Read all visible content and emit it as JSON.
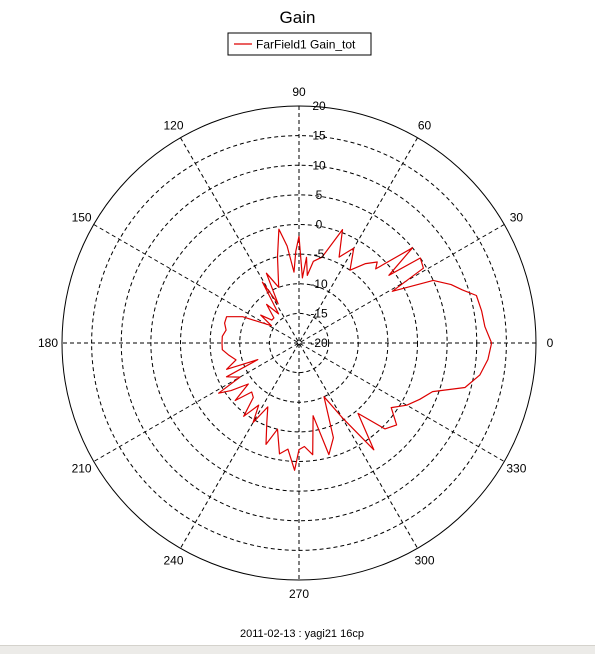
{
  "chart_data": {
    "type": "polar-line",
    "title": "Gain",
    "legend": {
      "position": "top-center",
      "entries": [
        "FarField1 Gain_tot"
      ]
    },
    "radial_axis": {
      "min": -20,
      "max": 20,
      "ticks": [
        "-20",
        "-15",
        "-10",
        "-5",
        "0",
        "5",
        "10",
        "15",
        "20"
      ],
      "tick_angle_deg": 90
    },
    "angular_axis": {
      "ticks": [
        "0",
        "30",
        "60",
        "90",
        "120",
        "150",
        "180",
        "210",
        "240",
        "270",
        "300",
        "330"
      ],
      "direction": "counterclockwise",
      "zero": "right"
    },
    "grid": true,
    "series": [
      {
        "name": "FarField1 Gain_tot",
        "color": "#dd0000",
        "theta_deg": [
          0,
          5,
          10,
          15,
          18,
          21,
          25,
          29,
          31,
          35,
          37,
          40,
          44,
          46,
          50,
          55,
          60,
          65,
          69,
          75,
          80,
          83,
          85,
          87,
          90,
          92,
          94,
          97,
          100,
          104,
          110,
          115,
          118,
          121,
          125,
          130,
          135,
          140,
          144,
          148,
          155,
          160,
          165,
          170,
          175,
          180,
          185,
          190,
          195,
          200,
          202,
          205,
          210,
          212,
          215,
          219,
          222,
          226,
          230,
          233,
          237,
          240,
          244,
          248,
          252,
          256,
          260,
          264,
          268,
          270,
          273,
          277,
          281,
          285,
          290,
          295,
          300,
          305,
          310,
          315,
          320,
          325,
          330,
          335,
          340,
          345,
          350,
          355
        ],
        "r_db": [
          12.5,
          11.5,
          11.3,
          11.0,
          9.0,
          7.5,
          5.0,
          -2.0,
          4.5,
          5.0,
          -1.0,
          5.0,
          -2.0,
          -1.0,
          -2.5,
          -5.0,
          -1.5,
          -4.0,
          0.5,
          -5.0,
          -6.0,
          -8.5,
          -5.5,
          -9.0,
          -2.0,
          -4.5,
          -8.0,
          -3.5,
          -0.5,
          -5.0,
          -10.0,
          -7.0,
          -12.5,
          -8.0,
          -14.0,
          -11.5,
          -14.0,
          -14.0,
          -12.0,
          -14.5,
          -9.5,
          -7.0,
          -7.0,
          -7.5,
          -7.0,
          -7.0,
          -7.0,
          -8.0,
          -9.0,
          -7.0,
          -12.5,
          -6.5,
          -8.5,
          -4.0,
          -6.0,
          -9.0,
          -5.5,
          -8.5,
          -8.0,
          -4.5,
          -7.5,
          -4.5,
          -8.0,
          -5.5,
          -2.0,
          -5.0,
          -1.0,
          -2.0,
          1.5,
          -2.0,
          -2.5,
          -1.0,
          -7.5,
          -0.5,
          -3.0,
          -10.0,
          -5.5,
          2.0,
          -4.5,
          0.5,
          1.5,
          -1.0,
          1.0,
          2.5,
          4.0,
          9.0,
          11.0,
          12.0
        ]
      }
    ]
  },
  "footer": {
    "text": "2011-02-13 : yagi21 16cp"
  }
}
